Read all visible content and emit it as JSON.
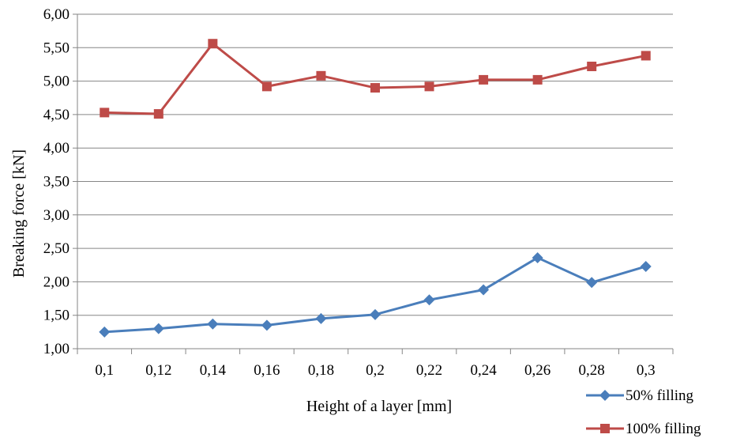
{
  "chart_data": {
    "type": "line",
    "title": "",
    "xlabel": "Height of a layer [mm]",
    "ylabel": "Breaking force [kN]",
    "categories": [
      "0,1",
      "0,12",
      "0,14",
      "0,16",
      "0,18",
      "0,2",
      "0,22",
      "0,24",
      "0,26",
      "0,28",
      "0,3"
    ],
    "ylim": [
      1.0,
      6.0
    ],
    "yticks": [
      "1,00",
      "1,50",
      "2,00",
      "2,50",
      "3,00",
      "3,50",
      "4,00",
      "4,50",
      "5,00",
      "5,50",
      "6,00"
    ],
    "grid": true,
    "legend_position": "bottom-right",
    "series": [
      {
        "name": "50% filling",
        "color": "#4a7ebb",
        "marker": "diamond",
        "values": [
          1.25,
          1.3,
          1.37,
          1.35,
          1.45,
          1.51,
          1.73,
          1.88,
          2.36,
          1.99,
          2.23
        ]
      },
      {
        "name": "100% filling",
        "color": "#be4b48",
        "marker": "square",
        "values": [
          4.53,
          4.51,
          5.56,
          4.92,
          5.08,
          4.9,
          4.92,
          5.02,
          5.02,
          5.22,
          5.38
        ]
      }
    ]
  }
}
